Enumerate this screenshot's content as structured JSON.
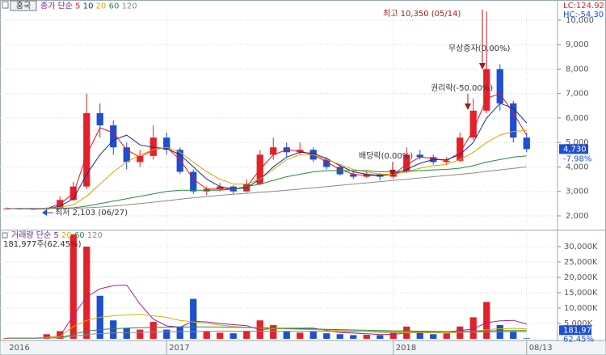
{
  "header": {
    "stock_button": "홍국",
    "lc": "LC:124.92",
    "hc": "HC:-54.30"
  },
  "chart_data": [
    {
      "type": "candlestick",
      "legend_title": "종가 단순",
      "categories": [
        "2016",
        null,
        null,
        null,
        null,
        null,
        null,
        null,
        null,
        null,
        null,
        null,
        "2017",
        null,
        null,
        null,
        null,
        null,
        null,
        null,
        null,
        null,
        null,
        null,
        null,
        null,
        null,
        null,
        null,
        "2018",
        null,
        null,
        null,
        null,
        null,
        null,
        null,
        null,
        null,
        "08/13"
      ],
      "open": [
        2300,
        2300,
        2290,
        2280,
        2300,
        2650,
        3200,
        6200,
        5700,
        4800,
        4200,
        4450,
        5200,
        4700,
        3800,
        3000,
        3100,
        3200,
        3000,
        3300,
        4500,
        4800,
        4600,
        4700,
        4300,
        4000,
        3700,
        3600,
        3700,
        3600,
        3800,
        4500,
        4400,
        4200,
        4250,
        5200,
        6300,
        8000,
        6600,
        5200
      ],
      "high": [
        2350,
        2330,
        2320,
        2350,
        2800,
        3400,
        7000,
        6600,
        5900,
        5000,
        4700,
        5700,
        5400,
        4800,
        3900,
        3200,
        3350,
        3250,
        3500,
        4700,
        5200,
        5000,
        5000,
        4800,
        4400,
        4100,
        3800,
        3850,
        3750,
        3900,
        4800,
        4700,
        4500,
        4400,
        5400,
        6800,
        10350,
        8200,
        6700,
        5400
      ],
      "low": [
        2280,
        2270,
        2250,
        2103,
        2280,
        2600,
        3100,
        5200,
        4500,
        3900,
        4000,
        4300,
        4500,
        3700,
        2900,
        2850,
        3000,
        2900,
        2950,
        3250,
        4300,
        4400,
        4500,
        4200,
        3900,
        3650,
        3500,
        3550,
        3450,
        3500,
        3750,
        4300,
        4100,
        4100,
        4200,
        5100,
        6200,
        6300,
        5000,
        4600
      ],
      "close": [
        2300,
        2290,
        2280,
        2300,
        2650,
        3200,
        6200,
        5700,
        4800,
        4200,
        4450,
        5200,
        4700,
        3800,
        3000,
        3100,
        3200,
        3000,
        3300,
        4500,
        4800,
        4600,
        4700,
        4300,
        4000,
        3700,
        3600,
        3700,
        3600,
        3800,
        4500,
        4400,
        4200,
        4250,
        5200,
        6300,
        8000,
        6600,
        5200,
        4730
      ],
      "up_color": "#e3212b",
      "down_color": "#1c4fd1",
      "series": [
        {
          "name": "5",
          "color": "#e8141c",
          "values": [
            2300,
            2290,
            2285,
            2290,
            2500,
            2900,
            4500,
            5600,
            5400,
            4700,
            4400,
            4700,
            4800,
            4300,
            3500,
            3100,
            3100,
            3100,
            3200,
            3900,
            4500,
            4700,
            4650,
            4500,
            4200,
            3900,
            3700,
            3650,
            3650,
            3700,
            4100,
            4400,
            4350,
            4250,
            4600,
            5500,
            6800,
            7000,
            6200,
            5300
          ]
        },
        {
          "name": "10",
          "color": "#1b2a8c",
          "values": [
            2300,
            2295,
            2290,
            2290,
            2400,
            2700,
            3700,
            4500,
            5100,
            5300,
            4900,
            4800,
            4750,
            4500,
            4000,
            3500,
            3200,
            3100,
            3150,
            3500,
            4000,
            4400,
            4600,
            4550,
            4350,
            4050,
            3800,
            3700,
            3650,
            3700,
            3900,
            4150,
            4300,
            4300,
            4500,
            5000,
            6000,
            6600,
            6400,
            5800
          ]
        },
        {
          "name": "20",
          "color": "#e3a000",
          "values": [
            2300,
            2300,
            2300,
            2300,
            2350,
            2450,
            2800,
            3300,
            3800,
            4200,
            4500,
            4700,
            4800,
            4600,
            4200,
            3800,
            3500,
            3300,
            3300,
            3500,
            3900,
            4300,
            4500,
            4500,
            4300,
            4100,
            3900,
            3800,
            3700,
            3700,
            3800,
            3950,
            4050,
            4100,
            4300,
            4600,
            5000,
            5300,
            5450,
            5500
          ]
        },
        {
          "name": "60",
          "color": "#2a8a3a",
          "values": [
            2300,
            2300,
            2300,
            2300,
            2310,
            2330,
            2400,
            2500,
            2600,
            2700,
            2800,
            2900,
            3000,
            3050,
            3050,
            3050,
            3050,
            3100,
            3200,
            3300,
            3450,
            3600,
            3700,
            3800,
            3850,
            3850,
            3850,
            3850,
            3800,
            3800,
            3820,
            3850,
            3880,
            3900,
            3950,
            4050,
            4200,
            4300,
            4400,
            4450
          ]
        },
        {
          "name": "120",
          "color": "#8a8a8a",
          "values": [
            2300,
            2300,
            2300,
            2300,
            2300,
            2310,
            2330,
            2360,
            2400,
            2450,
            2500,
            2560,
            2620,
            2680,
            2740,
            2790,
            2840,
            2880,
            2920,
            2960,
            3000,
            3050,
            3100,
            3150,
            3200,
            3250,
            3300,
            3350,
            3400,
            3450,
            3500,
            3550,
            3600,
            3650,
            3700,
            3750,
            3820,
            3880,
            3940,
            4000
          ]
        }
      ],
      "ylim": [
        1470,
        10360
      ],
      "yticks": [
        {
          "value": 2000,
          "label": "2,000"
        },
        {
          "value": 3000,
          "label": "3,000"
        },
        {
          "value": 4000,
          "label": "4,000"
        },
        {
          "value": 5000,
          "label": "5,000"
        },
        {
          "value": 6000,
          "label": "6,000"
        },
        {
          "value": 7000,
          "label": "7,000"
        },
        {
          "value": 8000,
          "label": "8,000"
        },
        {
          "value": 9000,
          "label": "9,000"
        },
        {
          "value": 10000,
          "label": "10,000"
        }
      ],
      "last_label": "4,730",
      "change_label": "-7.98%",
      "annotations": [
        "최고 10,350 (05/14)",
        "무상증자(0.00%)",
        "권리락(-50.00%)",
        "배당락(0.00%)",
        "최저 2,103 (06/27)"
      ]
    },
    {
      "type": "volume",
      "legend_title": "거래량 단순",
      "info": "181,977주(62.45%)",
      "values": [
        200000,
        150000,
        180000,
        1500000,
        2500000,
        34000000,
        30000000,
        14000000,
        6000000,
        3500000,
        3000000,
        5500000,
        3000000,
        4000000,
        13000000,
        2500000,
        2000000,
        1800000,
        2500000,
        6000000,
        4500000,
        2500000,
        2000000,
        2500000,
        1800000,
        1500000,
        1200000,
        1300000,
        1200000,
        2000000,
        4000000,
        2000000,
        1500000,
        1800000,
        4000000,
        7000000,
        12000000,
        4500000,
        2500000,
        181977
      ],
      "series": [
        {
          "name": "5",
          "color": "#a020a0",
          "values": [
            200000,
            180000,
            177000,
            510000,
            906000,
            7666000,
            13666000,
            16300000,
            17300000,
            17500000,
            11300000,
            6400000,
            4200000,
            3800000,
            5700000,
            5500000,
            5000000,
            4600000,
            4300000,
            2960000,
            3360000,
            3460000,
            3460000,
            3500000,
            2660000,
            2060000,
            1860000,
            1660000,
            1400000,
            1440000,
            1960000,
            2100000,
            2140000,
            2260000,
            2660000,
            3260000,
            5260000,
            5860000,
            6000000,
            4836000
          ]
        },
        {
          "name": "20",
          "color": "#d4b000",
          "values": [
            200000,
            190000,
            185000,
            500000,
            800000,
            4000000,
            6000000,
            7000000,
            7500000,
            7800000,
            8000000,
            7500000,
            7000000,
            6000000,
            5500000,
            5000000,
            4500000,
            4000000,
            3700000,
            3500000,
            3300000,
            3200000,
            3100000,
            3000000,
            2900000,
            2700000,
            2500000,
            2300000,
            2100000,
            2000000,
            2000000,
            2000000,
            1950000,
            1900000,
            2100000,
            2400000,
            3000000,
            3300000,
            3400000,
            3300000
          ]
        },
        {
          "name": "60",
          "color": "#2a8a3a",
          "values": [
            200000,
            200000,
            200000,
            300000,
            400000,
            1500000,
            2500000,
            3000000,
            3300000,
            3500000,
            3600000,
            3700000,
            3800000,
            3850000,
            3900000,
            3900000,
            3850000,
            3800000,
            3700000,
            3600000,
            3500000,
            3400000,
            3300000,
            3200000,
            3100000,
            3000000,
            2900000,
            2800000,
            2700000,
            2600000,
            2550000,
            2500000,
            2450000,
            2400000,
            2400000,
            2450000,
            2550000,
            2650000,
            2700000,
            2700000
          ]
        },
        {
          "name": "120",
          "color": "#8a8a8a",
          "values": [
            200000,
            200000,
            200000,
            250000,
            300000,
            900000,
            1400000,
            1700000,
            1900000,
            2000000,
            2100000,
            2200000,
            2300000,
            2350000,
            2400000,
            2450000,
            2500000,
            2500000,
            2500000,
            2500000,
            2500000,
            2480000,
            2460000,
            2440000,
            2420000,
            2400000,
            2380000,
            2360000,
            2340000,
            2320000,
            2300000,
            2280000,
            2260000,
            2240000,
            2220000,
            2220000,
            2240000,
            2260000,
            2280000,
            2280000
          ]
        }
      ],
      "ylim": [
        0,
        31840000
      ],
      "yticks": [
        {
          "value": 5000000,
          "label": "5,000K"
        },
        {
          "value": 10000000,
          "label": "10,000K"
        },
        {
          "value": 15000000,
          "label": "15,000K"
        },
        {
          "value": 20000000,
          "label": "20,000K"
        },
        {
          "value": 25000000,
          "label": "25,000K"
        },
        {
          "value": 30000000,
          "label": "30,000K"
        }
      ],
      "last_label": "181,977",
      "ratio_label": "62.45%"
    }
  ]
}
